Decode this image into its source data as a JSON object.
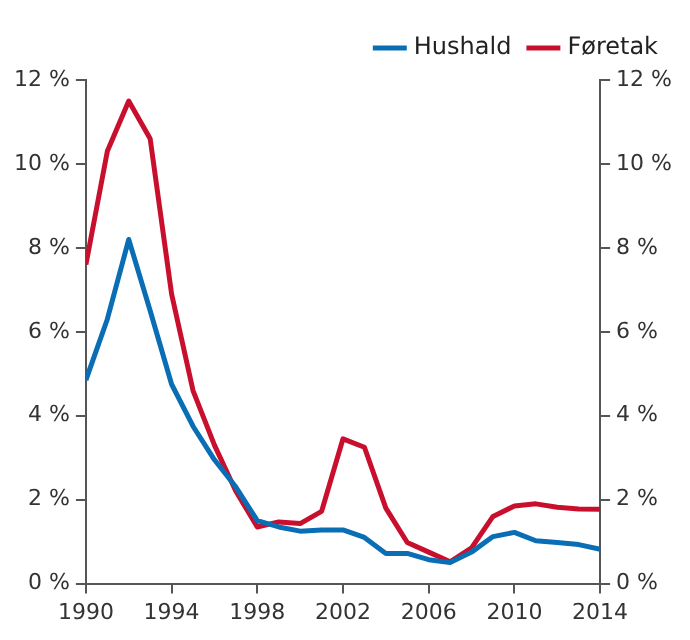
{
  "chart_data": {
    "type": "line",
    "x": [
      1990,
      1991,
      1992,
      1993,
      1994,
      1995,
      1996,
      1997,
      1998,
      1999,
      2000,
      2001,
      2002,
      2003,
      2004,
      2005,
      2006,
      2007,
      2008,
      2009,
      2010,
      2011,
      2012,
      2013,
      2014
    ],
    "series": [
      {
        "name": "Hushald",
        "color": "#0a6eb4",
        "values": [
          4.85,
          6.3,
          8.2,
          6.5,
          4.75,
          3.75,
          2.95,
          2.3,
          1.5,
          1.35,
          1.25,
          1.28,
          1.28,
          1.1,
          0.72,
          0.72,
          0.57,
          0.5,
          0.75,
          1.12,
          1.22,
          1.02,
          0.98,
          0.93,
          0.82
        ]
      },
      {
        "name": "Føretak",
        "color": "#c8102e",
        "values": [
          7.6,
          10.3,
          11.5,
          10.6,
          6.9,
          4.6,
          3.3,
          2.2,
          1.35,
          1.47,
          1.43,
          1.72,
          3.45,
          3.25,
          1.8,
          0.98,
          0.75,
          0.52,
          0.85,
          1.6,
          1.85,
          1.9,
          1.82,
          1.78,
          1.77
        ]
      }
    ],
    "xlim": [
      1990,
      2014
    ],
    "xticks": [
      1990,
      1994,
      1998,
      2002,
      2006,
      2010,
      2014
    ],
    "ylim": [
      0,
      12
    ],
    "yticks": [
      {
        "value": 0,
        "label": "0 %"
      },
      {
        "value": 2,
        "label": "2 %"
      },
      {
        "value": 4,
        "label": "4 %"
      },
      {
        "value": 6,
        "label": "6 %"
      },
      {
        "value": 8,
        "label": "8 %"
      },
      {
        "value": 10,
        "label": "10 %"
      },
      {
        "value": 12,
        "label": "12 %"
      }
    ],
    "y2lim": [
      0,
      12
    ],
    "y2ticks": [
      {
        "value": 0,
        "label": "0 %"
      },
      {
        "value": 2,
        "label": "2 %"
      },
      {
        "value": 4,
        "label": "4 %"
      },
      {
        "value": 6,
        "label": "6 %"
      },
      {
        "value": 8,
        "label": "8 %"
      },
      {
        "value": 10,
        "label": "10 %"
      },
      {
        "value": 12,
        "label": "12 %"
      }
    ],
    "grid": false,
    "legend": "top right",
    "marker": "none",
    "line_style": "solid"
  }
}
